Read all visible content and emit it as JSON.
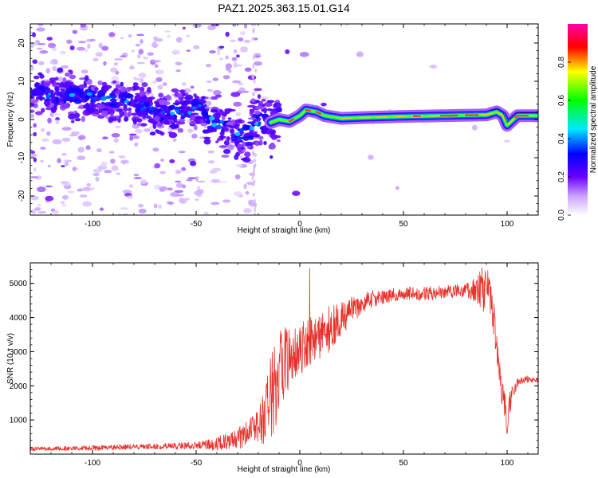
{
  "figure": {
    "title": "PAZ1.2025.363.15.01.G14"
  },
  "colors": {
    "snr_line": "#e8302a",
    "ridge": "#ff3b1e"
  },
  "chart_data": [
    {
      "type": "heatmap",
      "name": "spectrogram",
      "xlabel": "Height of straight line (km)",
      "ylabel": "Frequency (Hz)",
      "xlim": [
        -130,
        115
      ],
      "ylim": [
        -25,
        25
      ],
      "xticks": [
        -100,
        -50,
        0,
        50,
        100
      ],
      "xtick_labels": [
        "-100",
        "-50",
        "0",
        "50",
        "100"
      ],
      "yticks": [
        -20,
        -10,
        0,
        10,
        20
      ],
      "ytick_labels": [
        "-20",
        "-10",
        "0",
        "10",
        "20"
      ],
      "colorbar": {
        "label": "Normalized spectral amplitude",
        "range": [
          0,
          1
        ],
        "ticks": [
          0,
          0.2,
          0.4,
          0.6,
          0.8
        ],
        "tick_labels": [
          "0.0",
          "0.2",
          "0.4",
          "0.6",
          "0.8"
        ],
        "colormap": "rainbow (white → violet → blue → cyan → green → yellow → red → magenta)"
      },
      "ridge": {
        "description": "dominant frequency track",
        "x": [
          -130,
          -115,
          -100,
          -90,
          -80,
          -70,
          -60,
          -50,
          -45,
          -40,
          -35,
          -30,
          -25,
          -20,
          -15,
          -10,
          -5,
          0,
          3,
          8,
          12,
          20,
          30,
          50,
          70,
          90,
          95,
          98,
          100,
          105,
          115
        ],
        "y": [
          7,
          6.5,
          6,
          5,
          4,
          2.5,
          1.5,
          3,
          1,
          -1,
          -3,
          -4,
          -4,
          0,
          -1,
          0,
          -0.5,
          1,
          2.5,
          2,
          1,
          0.3,
          0.5,
          0.8,
          1,
          1.2,
          2,
          1,
          -1.5,
          1,
          1
        ]
      }
    },
    {
      "type": "line",
      "name": "snr",
      "xlabel": "Height of straight line (km)",
      "ylabel": "SNR (10 * v/v)",
      "xlim": [
        -130,
        115
      ],
      "ylim": [
        0,
        5600
      ],
      "xticks": [
        -100,
        -50,
        0,
        50,
        100
      ],
      "xtick_labels": [
        "-100",
        "-50",
        "0",
        "50",
        "100"
      ],
      "yticks": [
        1000,
        2000,
        3000,
        4000,
        5000
      ],
      "ytick_labels": [
        "1000",
        "2000",
        "3000",
        "4000",
        "5000"
      ],
      "envelope": {
        "x": [
          -130,
          -100,
          -70,
          -50,
          -40,
          -30,
          -25,
          -20,
          -15,
          -12,
          -10,
          -5,
          0,
          5,
          10,
          15,
          20,
          25,
          30,
          35,
          40,
          50,
          60,
          70,
          80,
          85,
          88,
          90,
          93,
          95,
          97,
          99,
          100,
          102,
          105,
          110,
          115
        ],
        "y": [
          150,
          180,
          220,
          250,
          300,
          450,
          600,
          800,
          1500,
          2000,
          2400,
          2800,
          3000,
          3300,
          3500,
          3700,
          4000,
          4200,
          4400,
          4550,
          4600,
          4700,
          4700,
          4750,
          4800,
          4800,
          4900,
          4700,
          4300,
          3200,
          1900,
          1300,
          1000,
          1700,
          2100,
          2200,
          2150
        ]
      },
      "noise_amplitude": {
        "x": [
          -130,
          -50,
          -30,
          -20,
          -15,
          -10,
          -5,
          0,
          10,
          20,
          30,
          40,
          80,
          85,
          90,
          93,
          95,
          97,
          100,
          103,
          106,
          115
        ],
        "y": [
          60,
          100,
          300,
          500,
          1200,
          1400,
          900,
          700,
          800,
          500,
          300,
          200,
          200,
          400,
          800,
          700,
          500,
          600,
          500,
          200,
          120,
          80
        ]
      }
    }
  ]
}
